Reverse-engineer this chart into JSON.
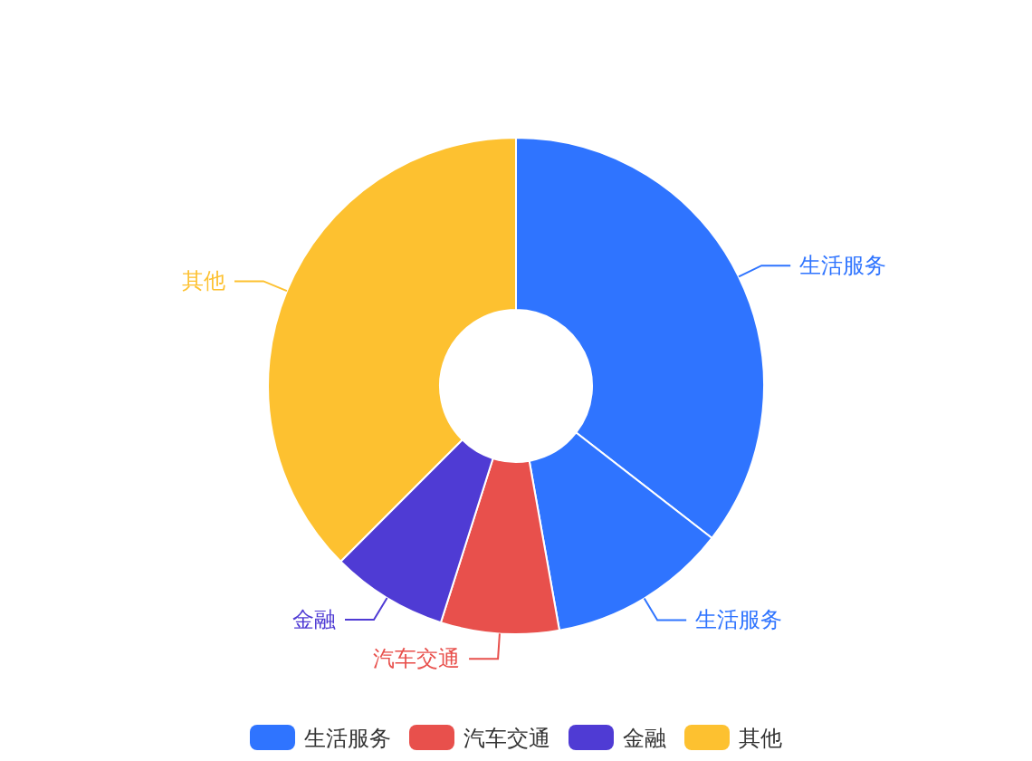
{
  "chart_data": {
    "type": "donut",
    "categories": [
      "生活服务",
      "生活服务",
      "汽车交通",
      "金融",
      "其他"
    ],
    "values": [
      35.5,
      11.7,
      7.7,
      7.6,
      37.5
    ],
    "colors": [
      "#2f74ff",
      "#2f74ff",
      "#e8504c",
      "#4f3bd4",
      "#fdc130"
    ],
    "legend": "bottom"
  }
}
